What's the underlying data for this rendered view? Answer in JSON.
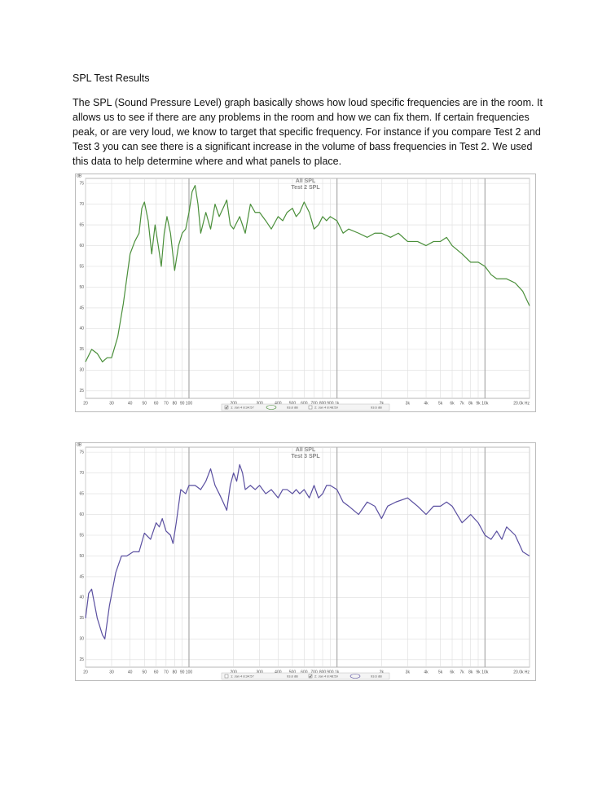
{
  "document": {
    "heading": "SPL Test Results",
    "paragraph": "The SPL (Sound Pressure Level) graph basically shows how loud specific frequencies are in the room. It allows us to see if there are any problems in the room and how we can fix them. If certain frequencies peak, or are very loud, we know to target that specific frequency. For instance if you compare Test 2 and Test 3 you can see there is a significant increase in the volume of bass frequencies in Test 2. We used this data to help determine where and what panels to place."
  },
  "chart_data": [
    {
      "type": "line",
      "title": "All SPL",
      "subtitle": "Test 2 SPL",
      "y_label": "dB",
      "color": "#4a8f3a",
      "log_x": true,
      "grid": true,
      "x": [
        20,
        22,
        24,
        26,
        28,
        30,
        33,
        36,
        40,
        43,
        46,
        48,
        50,
        53,
        56,
        59,
        62,
        65,
        68,
        71,
        75,
        80,
        85,
        90,
        95,
        100,
        105,
        110,
        115,
        120,
        130,
        140,
        150,
        160,
        170,
        180,
        190,
        200,
        220,
        240,
        260,
        280,
        300,
        330,
        360,
        400,
        430,
        460,
        500,
        530,
        560,
        600,
        650,
        700,
        750,
        800,
        850,
        900,
        1000,
        1100,
        1200,
        1400,
        1600,
        1800,
        2000,
        2300,
        2600,
        3000,
        3500,
        4000,
        4500,
        5000,
        5500,
        6000,
        7000,
        8000,
        9000,
        10000,
        11000,
        12000,
        14000,
        16000,
        18000,
        20000
      ],
      "values": [
        32,
        35,
        34,
        32,
        33,
        33,
        38,
        46,
        58,
        61,
        63,
        69,
        70.5,
        66,
        58,
        65,
        60,
        55,
        63,
        67,
        63,
        54,
        60,
        63,
        64,
        68,
        73,
        74.5,
        70,
        63,
        68,
        64,
        70,
        67,
        69,
        71,
        65,
        64,
        67,
        63,
        70,
        68,
        68,
        66,
        64,
        67,
        66,
        68,
        69,
        67,
        68,
        70.5,
        68,
        64,
        65,
        67,
        66,
        67,
        66,
        63,
        64,
        63,
        62,
        63,
        63,
        62,
        63,
        61,
        61,
        60,
        61,
        61,
        62,
        60,
        58,
        56,
        56,
        55,
        53,
        52,
        52,
        51,
        49,
        45.5
      ],
      "xlim": [
        20,
        20000
      ],
      "ylim": [
        23.2,
        76.2
      ],
      "xticks": [
        20,
        30,
        40,
        50,
        60,
        70,
        80,
        90,
        100,
        200,
        300,
        400,
        500,
        600,
        700,
        800,
        900,
        {
          "value": 1000,
          "label": "1k"
        },
        {
          "value": 2000,
          "label": "2k"
        },
        {
          "value": 3000,
          "label": "3k"
        },
        {
          "value": 4000,
          "label": "4k"
        },
        {
          "value": 5000,
          "label": "5k"
        },
        {
          "value": 6000,
          "label": "6k"
        },
        {
          "value": 7000,
          "label": "7k"
        },
        {
          "value": 8000,
          "label": "8k"
        },
        {
          "value": 9000,
          "label": "9k"
        },
        {
          "value": 10000,
          "label": "10k"
        },
        {
          "value": 20000,
          "label": "20.0k Hz"
        }
      ],
      "yticks": [
        25,
        30,
        35,
        40,
        45,
        50,
        55,
        60,
        65,
        70,
        75
      ],
      "legend": [
        "1: Jan 4 8:34:57",
        "93.8 dB",
        "2: Jan 4 8:48:59",
        "93.6 dB"
      ],
      "active_legend": 0
    },
    {
      "type": "line",
      "title": "All SPL",
      "subtitle": "Test 3 SPL",
      "y_label": "dB",
      "color": "#5a4fa0",
      "log_x": true,
      "grid": true,
      "x": [
        20,
        21,
        22,
        24,
        26,
        27,
        29,
        32,
        35,
        38,
        42,
        46,
        50,
        55,
        60,
        63,
        66,
        70,
        75,
        78,
        82,
        88,
        95,
        100,
        110,
        120,
        130,
        140,
        150,
        160,
        170,
        180,
        190,
        200,
        210,
        220,
        230,
        240,
        260,
        280,
        300,
        330,
        360,
        400,
        430,
        460,
        500,
        530,
        560,
        600,
        650,
        700,
        750,
        800,
        850,
        900,
        1000,
        1100,
        1200,
        1400,
        1600,
        1800,
        2000,
        2200,
        2500,
        3000,
        3500,
        4000,
        4500,
        5000,
        5500,
        6000,
        7000,
        7500,
        8000,
        9000,
        10000,
        11000,
        12000,
        13000,
        14000,
        16000,
        18000,
        20000
      ],
      "values": [
        35,
        41,
        42,
        35,
        31,
        30,
        38,
        46,
        50,
        50,
        51,
        51,
        55.5,
        54,
        58,
        57,
        59,
        56,
        55,
        53,
        58,
        66,
        65,
        67,
        67,
        66,
        68,
        71,
        67,
        65,
        63,
        61,
        67,
        70,
        68,
        72,
        70,
        66,
        67,
        66,
        67,
        65,
        66,
        64,
        66,
        66,
        65,
        66,
        65,
        66,
        64,
        67,
        64,
        65,
        67,
        67,
        66,
        63,
        62,
        60,
        63,
        62,
        59,
        62,
        63,
        64,
        62,
        60,
        62,
        62,
        63,
        62,
        58,
        59,
        60,
        58,
        55,
        54,
        56,
        54,
        57,
        55,
        51,
        50
      ],
      "xlim": [
        20,
        20000
      ],
      "ylim": [
        23.2,
        76.2
      ],
      "xticks": [
        20,
        30,
        40,
        50,
        60,
        70,
        80,
        90,
        100,
        200,
        300,
        400,
        500,
        600,
        700,
        800,
        900,
        {
          "value": 1000,
          "label": "1k"
        },
        {
          "value": 2000,
          "label": "2k"
        },
        {
          "value": 3000,
          "label": "3k"
        },
        {
          "value": 4000,
          "label": "4k"
        },
        {
          "value": 5000,
          "label": "5k"
        },
        {
          "value": 6000,
          "label": "6k"
        },
        {
          "value": 7000,
          "label": "7k"
        },
        {
          "value": 8000,
          "label": "8k"
        },
        {
          "value": 9000,
          "label": "9k"
        },
        {
          "value": 10000,
          "label": "10k"
        },
        {
          "value": 20000,
          "label": "20.0k Hz"
        }
      ],
      "yticks": [
        25,
        30,
        35,
        40,
        45,
        50,
        55,
        60,
        65,
        70,
        75
      ],
      "legend": [
        "1: Jan 4 8:34:57",
        "93.8 dB",
        "2: Jan 4 8:48:59",
        "93.6 dB"
      ],
      "active_legend": 1
    }
  ]
}
